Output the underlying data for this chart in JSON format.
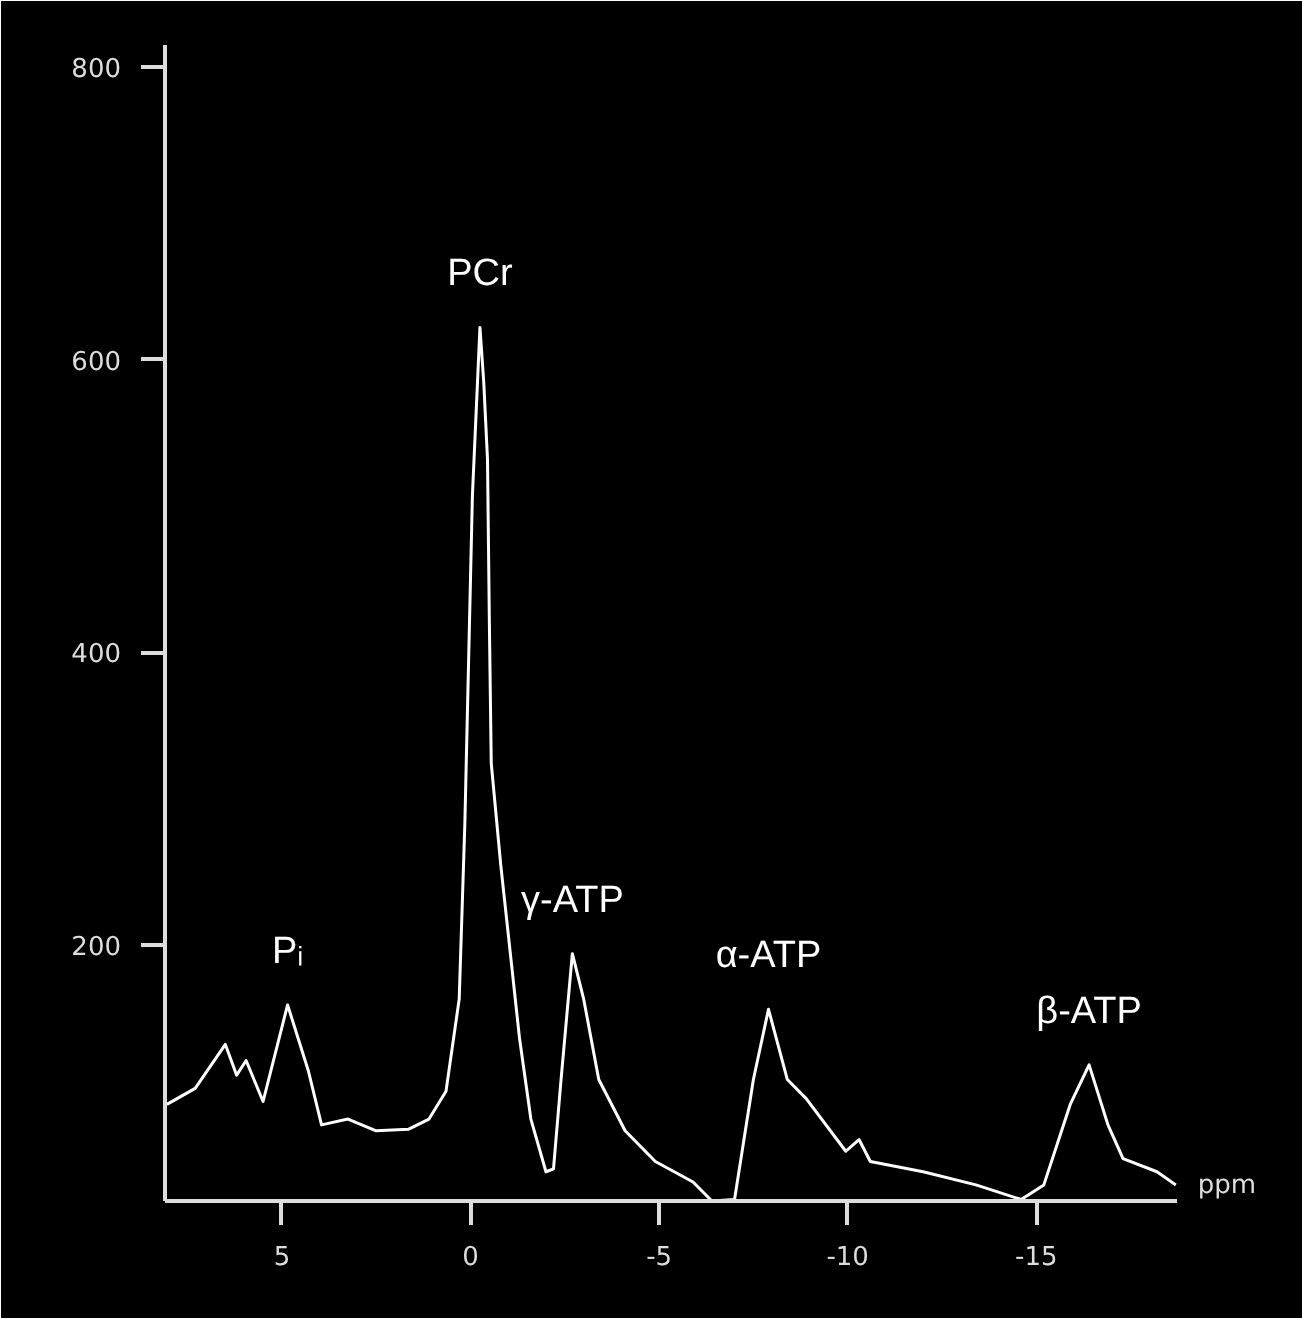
{
  "chart_data": {
    "type": "line",
    "xlabel": "ppm",
    "x": [
      8.05,
      7.3,
      6.5,
      6.2,
      5.95,
      5.5,
      4.85,
      4.3,
      3.95,
      3.25,
      2.5,
      1.65,
      1.1,
      0.65,
      0.3,
      0.15,
      -0.05,
      -0.25,
      -0.35,
      -0.45,
      -0.5,
      -0.55,
      -0.8,
      -1.3,
      -1.6,
      -2.0,
      -2.2,
      -2.4,
      -2.7,
      -3.0,
      -3.4,
      -4.1,
      -4.9,
      -5.9,
      -6.4,
      -7.0,
      -7.5,
      -7.9,
      -8.4,
      -8.9,
      -9.95,
      -10.3,
      -10.6,
      -12.0,
      -13.4,
      -14.6,
      -15.2,
      -15.9,
      -16.4,
      -16.9,
      -17.3,
      -18.2,
      -18.7
    ],
    "series": [
      {
        "color": "#ffffff",
        "values": [
          91,
          102,
          132,
          111,
          121,
          93,
          159,
          114,
          77,
          81,
          73,
          74,
          81,
          100,
          163,
          283,
          507,
          622,
          585,
          532,
          420,
          324,
          255,
          136,
          81,
          45,
          47,
          108,
          194,
          163,
          108,
          73,
          52,
          38,
          25,
          26,
          108,
          156,
          108,
          95,
          59,
          67,
          52,
          45,
          36,
          26,
          36,
          91,
          118,
          77,
          54,
          45,
          36
        ]
      }
    ],
    "xlim": [
      8.1,
      -18.75
    ],
    "ylim": [
      25,
      815
    ],
    "xticks": [
      5,
      0,
      -5,
      -10,
      -15
    ],
    "yticks": [
      200,
      400,
      600,
      800
    ],
    "grid": false,
    "line_style": "solid",
    "marker": "none",
    "annotations": [
      {
        "text": "PCr",
        "x": -0.25,
        "y": 622
      },
      {
        "text": "Pᵢ",
        "x": 4.85,
        "y": 159
      },
      {
        "text": "γ-ATP",
        "x": -2.7,
        "y": 194
      },
      {
        "text": "α-ATP",
        "x": -7.9,
        "y": 156
      },
      {
        "text": "β-ATP",
        "x": -16.4,
        "y": 118
      }
    ]
  }
}
